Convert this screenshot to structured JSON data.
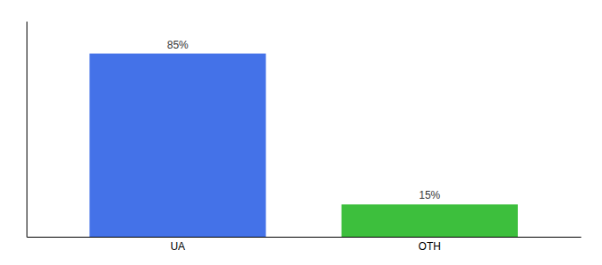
{
  "chart_data": {
    "type": "bar",
    "categories": [
      "UA",
      "OTH"
    ],
    "values": [
      85,
      15
    ],
    "value_labels": [
      "85%",
      "15%"
    ],
    "colors": [
      "#4472e8",
      "#3dbf3d"
    ],
    "ylim": [
      0,
      100
    ],
    "data_labels": true,
    "tick_labels": "x",
    "grid": false
  }
}
